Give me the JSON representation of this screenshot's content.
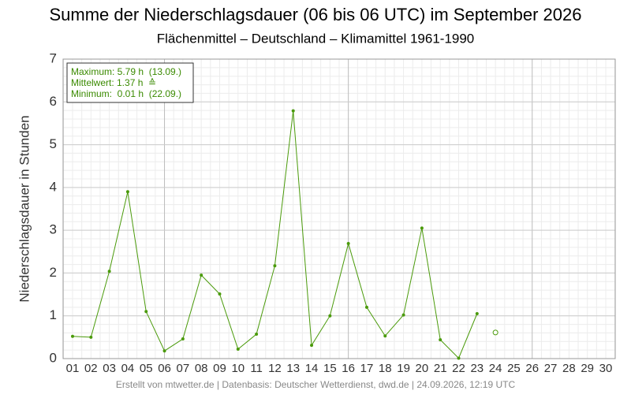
{
  "chart_data": {
    "type": "line",
    "title": "Summe der Niederschlagsdauer (06 bis 06 UTC) im September 2026",
    "subtitle": "Flächenmittel – Deutschland – Klimamittel 1961-1990",
    "y_label": "Niederschlagsdauer in Stunden",
    "annotations": [
      "Maximum: 5.79 h  (13.09.)",
      "Mittelwert: 1.37 h  ≙",
      "Minimum:  0.01 h  (22.09.)"
    ],
    "footer": "Erstellt von mtwetter.de | Datenbasis: Deutscher Wetterdienst, dwd.de | 24.09.2026, 12:19 UTC",
    "categories": [
      "01",
      "02",
      "03",
      "04",
      "05",
      "06",
      "07",
      "08",
      "09",
      "10",
      "11",
      "12",
      "13",
      "14",
      "15",
      "16",
      "17",
      "18",
      "19",
      "20",
      "21",
      "22",
      "23",
      "24",
      "25",
      "26",
      "27",
      "28",
      "29",
      "30"
    ],
    "series": [
      {
        "color": "#4a9a0a",
        "values": [
          0.52,
          0.5,
          2.04,
          3.9,
          1.1,
          0.18,
          0.46,
          1.95,
          1.51,
          0.22,
          0.57,
          2.17,
          5.79,
          0.31,
          1.0,
          2.69,
          1.2,
          0.53,
          1.02,
          3.05,
          0.44,
          0.01,
          1.05,
          null,
          null,
          null,
          null,
          null,
          null,
          null
        ]
      },
      {
        "color": "#4a9a0a",
        "marker": "open",
        "values": [
          null,
          null,
          null,
          null,
          null,
          null,
          null,
          null,
          null,
          null,
          null,
          null,
          null,
          null,
          null,
          null,
          null,
          null,
          null,
          null,
          null,
          null,
          null,
          0.61,
          null,
          null,
          null,
          null,
          null,
          null
        ]
      }
    ],
    "ylim": [
      0,
      7
    ],
    "yticks": [
      0,
      1,
      2,
      3,
      4,
      5,
      6,
      7
    ],
    "grid": true
  }
}
